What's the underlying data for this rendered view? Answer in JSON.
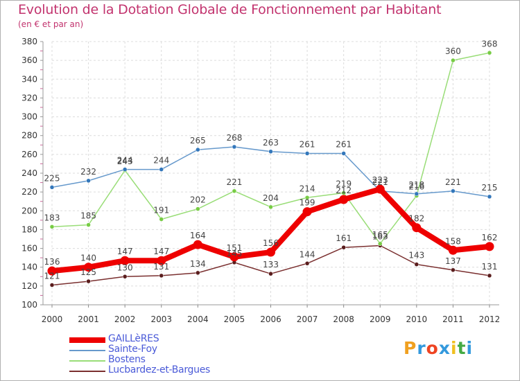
{
  "chart_data": {
    "type": "line",
    "title": "Evolution de la Dotation Globale de Fonctionnement par Habitant",
    "subtitle": "(en € et par an)",
    "xlabel": "",
    "ylabel": "",
    "ylim": [
      100,
      380
    ],
    "y_ticks": [
      "100",
      "120",
      "140",
      "160",
      "180",
      "200",
      "220",
      "240",
      "260",
      "280",
      "300",
      "320",
      "340",
      "360",
      "380"
    ],
    "categories": [
      "2000",
      "2001",
      "2002",
      "2003",
      "2004",
      "2005",
      "2006",
      "2007",
      "2008",
      "2009",
      "2010",
      "2011",
      "2012"
    ],
    "grid": true,
    "legend_position": "bottom-left",
    "series": [
      {
        "name": "Lucbardez-et-Bargues",
        "color": "#7a2f2f",
        "marker_color": "#5a1d1d",
        "values": [
          121,
          125,
          130,
          131,
          134,
          145,
          133,
          144,
          161,
          163,
          143,
          137,
          131
        ],
        "labels": [
          "121",
          "125",
          "130",
          "131",
          "134",
          "145",
          "133",
          "144",
          "161",
          "163",
          "143",
          "137",
          "131"
        ]
      },
      {
        "name": "Bostens",
        "color": "#99dd77",
        "marker_color": "#77cc44",
        "values": [
          183,
          185,
          243,
          191,
          202,
          221,
          204,
          214,
          219,
          165,
          216,
          360,
          368
        ],
        "labels": [
          "183",
          "185",
          "243",
          "191",
          "202",
          "221",
          "204",
          "214",
          "219",
          "165",
          "216",
          "360",
          "368"
        ]
      },
      {
        "name": "Sainte-Foy",
        "color": "#6699cc",
        "marker_color": "#3377bb",
        "values": [
          225,
          232,
          244,
          244,
          265,
          268,
          263,
          261,
          261,
          221,
          218,
          221,
          215
        ],
        "labels": [
          "225",
          "232",
          "244",
          "244",
          "265",
          "268",
          "263",
          "261",
          "261",
          "221",
          "218",
          "221",
          "215"
        ]
      },
      {
        "name": "GAILLèRES",
        "color": "#ee0000",
        "marker_color": "#ee0000",
        "values": [
          136,
          140,
          147,
          147,
          164,
          151,
          156,
          199,
          212,
          223,
          182,
          158,
          162
        ],
        "labels": [
          "136",
          "140",
          "147",
          "147",
          "164",
          "151",
          "156",
          "199",
          "212",
          "223",
          "182",
          "158",
          "162"
        ]
      }
    ],
    "legend_order": [
      "GAILLèRES",
      "Sainte-Foy",
      "Bostens",
      "Lucbardez-et-Bargues"
    ]
  },
  "logo": {
    "letters": [
      "P",
      "r",
      "o",
      "x",
      "i",
      "t",
      "i"
    ],
    "colors": [
      "#f0a020",
      "#3399dd",
      "#ee4422",
      "#3399dd",
      "#f0c020",
      "#44aa44",
      "#3399dd"
    ]
  }
}
